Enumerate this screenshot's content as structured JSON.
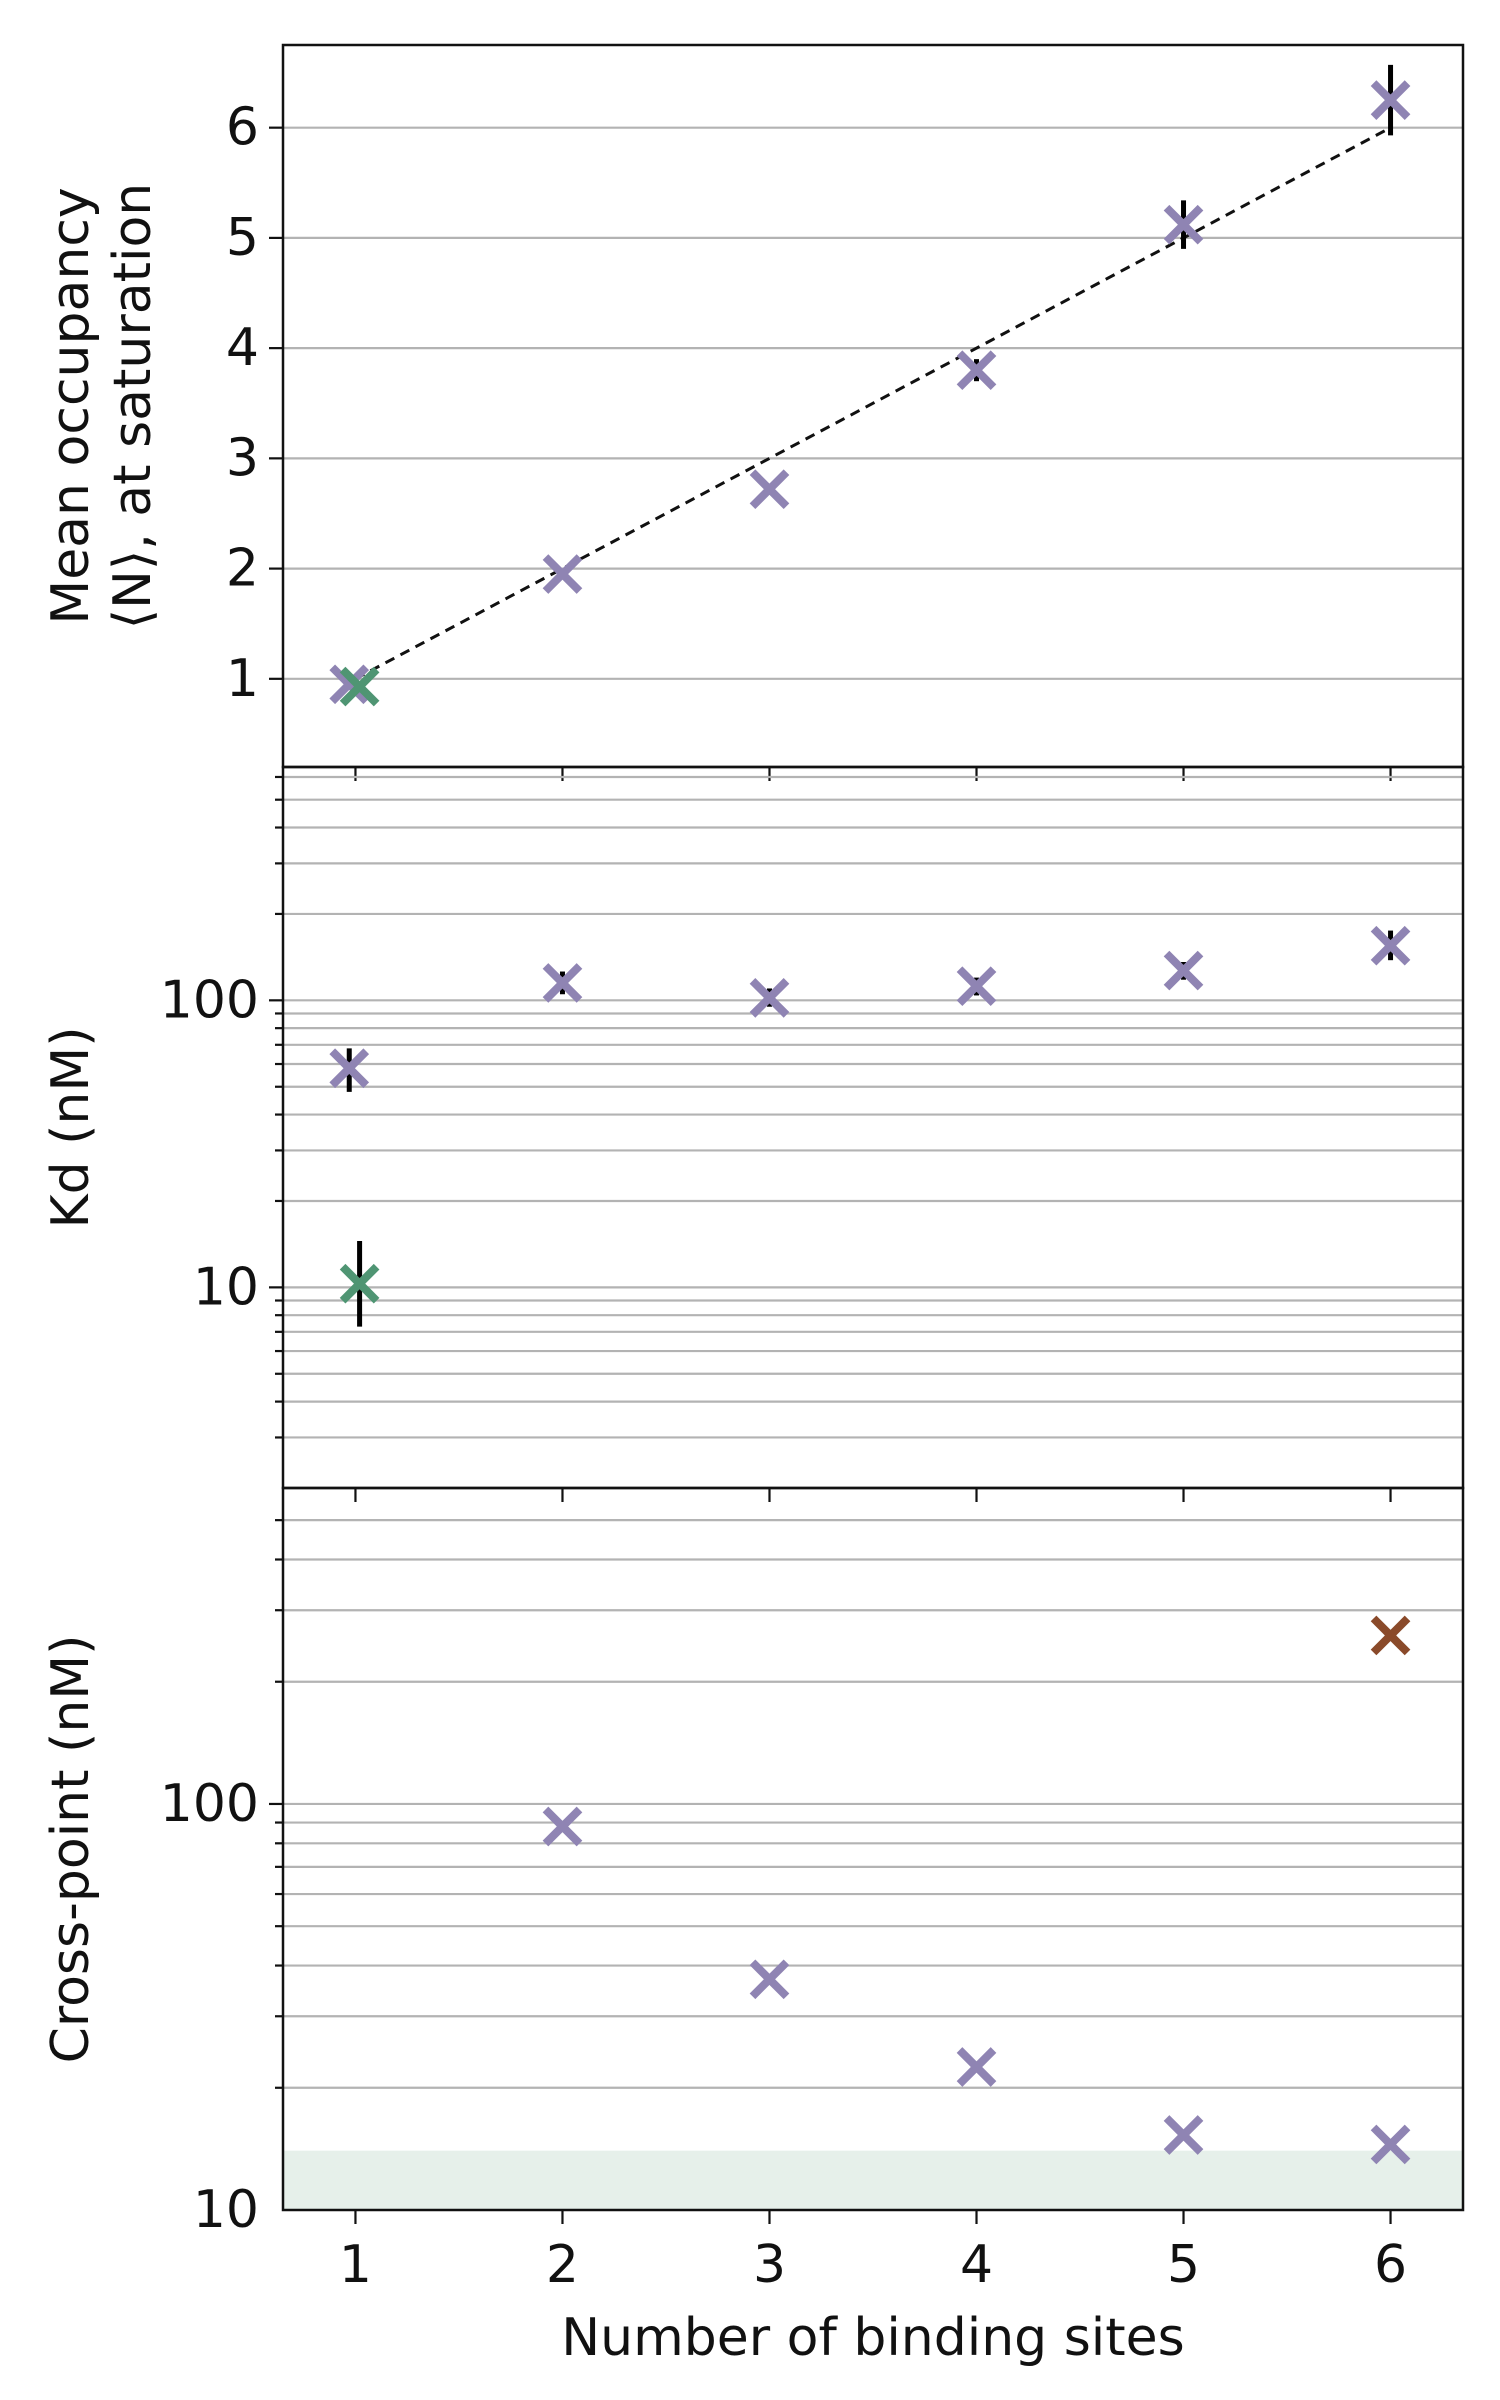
{
  "chart_data": [
    {
      "type": "scatter",
      "panel": "top",
      "ylabel_lines": [
        "Mean occupancy",
        "⟨N⟩, at saturation"
      ],
      "xlabel": "",
      "yscale": "linear",
      "ylim": [
        0.2,
        6.75
      ],
      "xlim": [
        0.65,
        6.35
      ],
      "yticks": [
        1,
        2,
        3,
        4,
        5,
        6
      ],
      "ytick_labels": [
        "1",
        "2",
        "3",
        "4",
        "5",
        "6"
      ],
      "grid": "horizontal",
      "reference_line": {
        "style": "dashed",
        "color": "#111111",
        "x": [
          1,
          6
        ],
        "y": [
          1,
          6
        ]
      },
      "series": [
        {
          "color": "#8f84b3",
          "marker": "x",
          "points": [
            {
              "x": 0.97,
              "y": 0.95,
              "err": 0
            },
            {
              "x": 2,
              "y": 1.95,
              "err": 0
            },
            {
              "x": 3,
              "y": 2.72,
              "err": 0
            },
            {
              "x": 4,
              "y": 3.8,
              "err": 0.1
            },
            {
              "x": 5,
              "y": 5.12,
              "err": 0.22
            },
            {
              "x": 6,
              "y": 6.25,
              "err": 0.32
            }
          ]
        },
        {
          "color": "#4f9573",
          "marker": "x",
          "points": [
            {
              "x": 1.02,
              "y": 0.93,
              "err": 0
            }
          ]
        }
      ]
    },
    {
      "type": "scatter",
      "panel": "middle",
      "ylabel_lines": [
        "Kd (nM)"
      ],
      "xlabel": "",
      "yscale": "log",
      "ylim": [
        2,
        650
      ],
      "xlim": [
        0.65,
        6.35
      ],
      "yticks": [
        10,
        100
      ],
      "ytick_labels": [
        "10",
        "100"
      ],
      "grid": "horizontal",
      "series": [
        {
          "color": "#8f84b3",
          "marker": "x",
          "points": [
            {
              "x": 0.97,
              "y": 58,
              "err_low": 48,
              "err_high": 68
            },
            {
              "x": 2,
              "y": 115,
              "err_low": 105,
              "err_high": 126
            },
            {
              "x": 3,
              "y": 102,
              "err_low": 95,
              "err_high": 110
            },
            {
              "x": 4,
              "y": 112,
              "err_low": 104,
              "err_high": 120
            },
            {
              "x": 5,
              "y": 127,
              "err_low": 118,
              "err_high": 136
            },
            {
              "x": 6,
              "y": 155,
              "err_low": 138,
              "err_high": 175
            }
          ]
        },
        {
          "color": "#4f9573",
          "marker": "x",
          "points": [
            {
              "x": 1.02,
              "y": 10.3,
              "err_low": 7.3,
              "err_high": 14.5
            }
          ]
        }
      ]
    },
    {
      "type": "scatter",
      "panel": "bottom",
      "ylabel_lines": [
        "Cross-point (nM)"
      ],
      "xlabel": "Number of binding sites",
      "yscale": "log",
      "ylim": [
        10,
        600
      ],
      "xlim": [
        0.65,
        6.35
      ],
      "xticks": [
        1,
        2,
        3,
        4,
        5,
        6
      ],
      "xtick_labels": [
        "1",
        "2",
        "3",
        "4",
        "5",
        "6"
      ],
      "yticks": [
        10,
        100
      ],
      "ytick_labels": [
        "10",
        "100"
      ],
      "grid": "horizontal",
      "shaded_band": {
        "y": [
          10,
          14
        ],
        "color": "#e6f0ea"
      },
      "series": [
        {
          "color": "#8f84b3",
          "marker": "x",
          "points": [
            {
              "x": 2,
              "y": 88
            },
            {
              "x": 3,
              "y": 37
            },
            {
              "x": 4,
              "y": 22.5
            },
            {
              "x": 5,
              "y": 15.3
            },
            {
              "x": 6,
              "y": 14.5
            }
          ]
        },
        {
          "color": "#8a4a2a",
          "marker": "x",
          "points": [
            {
              "x": 6,
              "y": 260
            }
          ]
        }
      ]
    }
  ]
}
